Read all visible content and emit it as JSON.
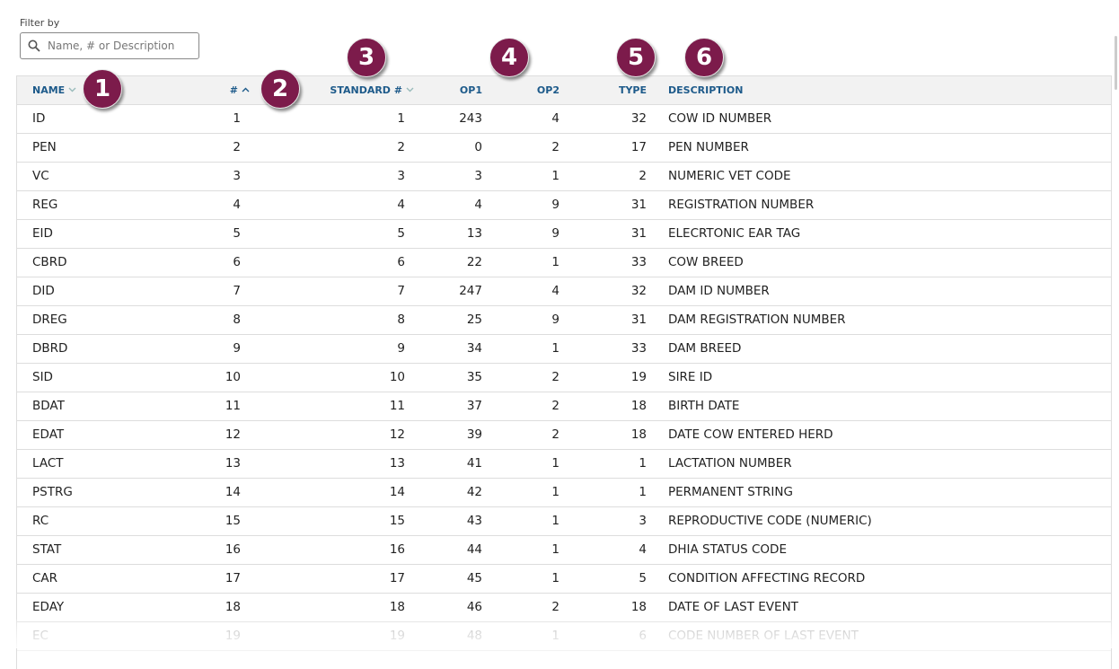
{
  "filter": {
    "label": "Filter by",
    "placeholder": "Name, # or Description"
  },
  "table": {
    "columns": [
      "NAME",
      "#",
      "STANDARD #",
      "OP1",
      "OP2",
      "TYPE",
      "DESCRIPTION"
    ],
    "rows": [
      [
        "ID",
        1,
        1,
        243,
        4,
        32,
        "COW ID NUMBER"
      ],
      [
        "PEN",
        2,
        2,
        0,
        2,
        17,
        "PEN NUMBER"
      ],
      [
        "VC",
        3,
        3,
        3,
        1,
        2,
        "NUMERIC VET CODE"
      ],
      [
        "REG",
        4,
        4,
        4,
        9,
        31,
        "REGISTRATION NUMBER"
      ],
      [
        "EID",
        5,
        5,
        13,
        9,
        31,
        "ELECRTONIC EAR TAG"
      ],
      [
        "CBRD",
        6,
        6,
        22,
        1,
        33,
        "COW BREED"
      ],
      [
        "DID",
        7,
        7,
        247,
        4,
        32,
        "DAM ID NUMBER"
      ],
      [
        "DREG",
        8,
        8,
        25,
        9,
        31,
        "DAM REGISTRATION NUMBER"
      ],
      [
        "DBRD",
        9,
        9,
        34,
        1,
        33,
        "DAM BREED"
      ],
      [
        "SID",
        10,
        10,
        35,
        2,
        19,
        "SIRE ID"
      ],
      [
        "BDAT",
        11,
        11,
        37,
        2,
        18,
        "BIRTH DATE"
      ],
      [
        "EDAT",
        12,
        12,
        39,
        2,
        18,
        "DATE COW ENTERED HERD"
      ],
      [
        "LACT",
        13,
        13,
        41,
        1,
        1,
        "LACTATION NUMBER"
      ],
      [
        "PSTRG",
        14,
        14,
        42,
        1,
        1,
        "PERMANENT STRING"
      ],
      [
        "RC",
        15,
        15,
        43,
        1,
        3,
        "REPRODUCTIVE CODE (NUMERIC)"
      ],
      [
        "STAT",
        16,
        16,
        44,
        1,
        4,
        "DHIA STATUS CODE"
      ],
      [
        "CAR",
        17,
        17,
        45,
        1,
        5,
        "CONDITION AFFECTING RECORD"
      ],
      [
        "EDAY",
        18,
        18,
        46,
        2,
        18,
        "DATE OF LAST EVENT"
      ],
      [
        "EC",
        19,
        19,
        48,
        1,
        6,
        "CODE NUMBER OF LAST EVENT"
      ]
    ]
  },
  "callouts": [
    "1",
    "2",
    "3",
    "4",
    "5",
    "6"
  ]
}
